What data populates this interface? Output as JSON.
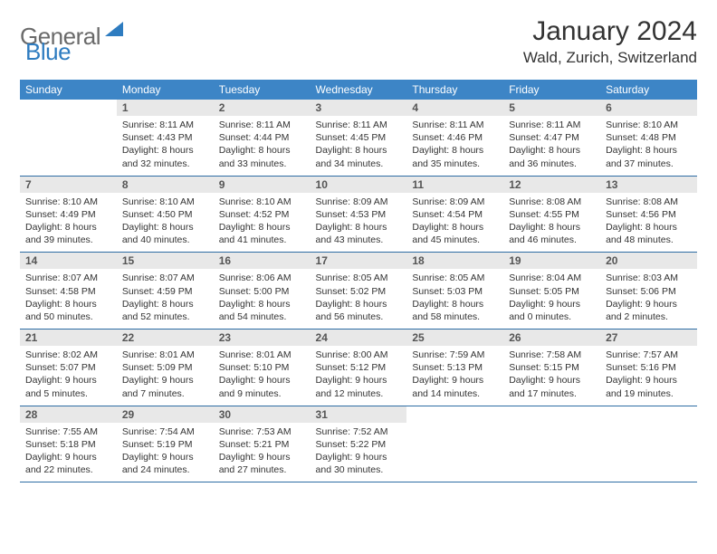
{
  "brand": {
    "word1": "General",
    "word2": "Blue"
  },
  "title": "January 2024",
  "location": "Wald, Zurich, Switzerland",
  "colors": {
    "header_bg": "#3d85c6",
    "header_text": "#ffffff",
    "daynum_bg": "#e8e8e8",
    "row_border": "#2e6da4",
    "logo_gray": "#6a6a6a",
    "logo_blue": "#2e7cc0"
  },
  "weekdays": [
    "Sunday",
    "Monday",
    "Tuesday",
    "Wednesday",
    "Thursday",
    "Friday",
    "Saturday"
  ],
  "start_weekday": 1,
  "days": [
    {
      "n": 1,
      "sunrise": "8:11 AM",
      "sunset": "4:43 PM",
      "daylight": "8 hours and 32 minutes."
    },
    {
      "n": 2,
      "sunrise": "8:11 AM",
      "sunset": "4:44 PM",
      "daylight": "8 hours and 33 minutes."
    },
    {
      "n": 3,
      "sunrise": "8:11 AM",
      "sunset": "4:45 PM",
      "daylight": "8 hours and 34 minutes."
    },
    {
      "n": 4,
      "sunrise": "8:11 AM",
      "sunset": "4:46 PM",
      "daylight": "8 hours and 35 minutes."
    },
    {
      "n": 5,
      "sunrise": "8:11 AM",
      "sunset": "4:47 PM",
      "daylight": "8 hours and 36 minutes."
    },
    {
      "n": 6,
      "sunrise": "8:10 AM",
      "sunset": "4:48 PM",
      "daylight": "8 hours and 37 minutes."
    },
    {
      "n": 7,
      "sunrise": "8:10 AM",
      "sunset": "4:49 PM",
      "daylight": "8 hours and 39 minutes."
    },
    {
      "n": 8,
      "sunrise": "8:10 AM",
      "sunset": "4:50 PM",
      "daylight": "8 hours and 40 minutes."
    },
    {
      "n": 9,
      "sunrise": "8:10 AM",
      "sunset": "4:52 PM",
      "daylight": "8 hours and 41 minutes."
    },
    {
      "n": 10,
      "sunrise": "8:09 AM",
      "sunset": "4:53 PM",
      "daylight": "8 hours and 43 minutes."
    },
    {
      "n": 11,
      "sunrise": "8:09 AM",
      "sunset": "4:54 PM",
      "daylight": "8 hours and 45 minutes."
    },
    {
      "n": 12,
      "sunrise": "8:08 AM",
      "sunset": "4:55 PM",
      "daylight": "8 hours and 46 minutes."
    },
    {
      "n": 13,
      "sunrise": "8:08 AM",
      "sunset": "4:56 PM",
      "daylight": "8 hours and 48 minutes."
    },
    {
      "n": 14,
      "sunrise": "8:07 AM",
      "sunset": "4:58 PM",
      "daylight": "8 hours and 50 minutes."
    },
    {
      "n": 15,
      "sunrise": "8:07 AM",
      "sunset": "4:59 PM",
      "daylight": "8 hours and 52 minutes."
    },
    {
      "n": 16,
      "sunrise": "8:06 AM",
      "sunset": "5:00 PM",
      "daylight": "8 hours and 54 minutes."
    },
    {
      "n": 17,
      "sunrise": "8:05 AM",
      "sunset": "5:02 PM",
      "daylight": "8 hours and 56 minutes."
    },
    {
      "n": 18,
      "sunrise": "8:05 AM",
      "sunset": "5:03 PM",
      "daylight": "8 hours and 58 minutes."
    },
    {
      "n": 19,
      "sunrise": "8:04 AM",
      "sunset": "5:05 PM",
      "daylight": "9 hours and 0 minutes."
    },
    {
      "n": 20,
      "sunrise": "8:03 AM",
      "sunset": "5:06 PM",
      "daylight": "9 hours and 2 minutes."
    },
    {
      "n": 21,
      "sunrise": "8:02 AM",
      "sunset": "5:07 PM",
      "daylight": "9 hours and 5 minutes."
    },
    {
      "n": 22,
      "sunrise": "8:01 AM",
      "sunset": "5:09 PM",
      "daylight": "9 hours and 7 minutes."
    },
    {
      "n": 23,
      "sunrise": "8:01 AM",
      "sunset": "5:10 PM",
      "daylight": "9 hours and 9 minutes."
    },
    {
      "n": 24,
      "sunrise": "8:00 AM",
      "sunset": "5:12 PM",
      "daylight": "9 hours and 12 minutes."
    },
    {
      "n": 25,
      "sunrise": "7:59 AM",
      "sunset": "5:13 PM",
      "daylight": "9 hours and 14 minutes."
    },
    {
      "n": 26,
      "sunrise": "7:58 AM",
      "sunset": "5:15 PM",
      "daylight": "9 hours and 17 minutes."
    },
    {
      "n": 27,
      "sunrise": "7:57 AM",
      "sunset": "5:16 PM",
      "daylight": "9 hours and 19 minutes."
    },
    {
      "n": 28,
      "sunrise": "7:55 AM",
      "sunset": "5:18 PM",
      "daylight": "9 hours and 22 minutes."
    },
    {
      "n": 29,
      "sunrise": "7:54 AM",
      "sunset": "5:19 PM",
      "daylight": "9 hours and 24 minutes."
    },
    {
      "n": 30,
      "sunrise": "7:53 AM",
      "sunset": "5:21 PM",
      "daylight": "9 hours and 27 minutes."
    },
    {
      "n": 31,
      "sunrise": "7:52 AM",
      "sunset": "5:22 PM",
      "daylight": "9 hours and 30 minutes."
    }
  ],
  "labels": {
    "sunrise": "Sunrise:",
    "sunset": "Sunset:",
    "daylight": "Daylight:"
  }
}
